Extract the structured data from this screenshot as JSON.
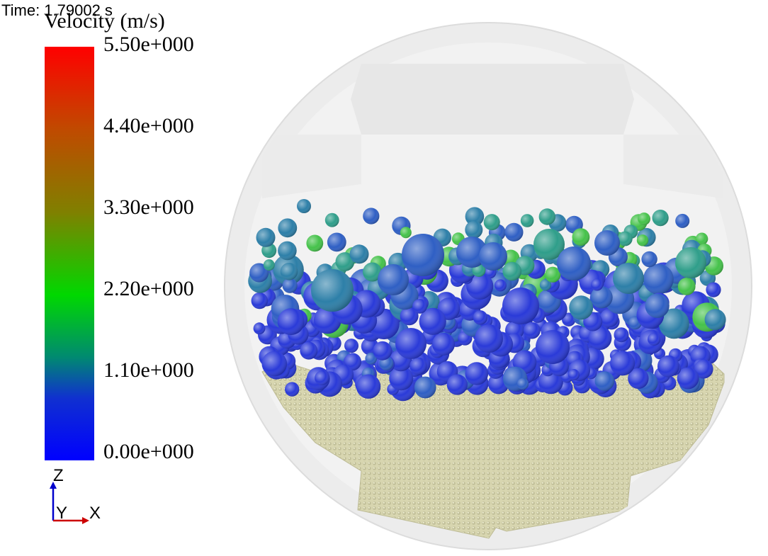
{
  "header": {
    "time_text": "Time: 1.79002 s"
  },
  "legend": {
    "title": "Velocity (m/s)",
    "ticks": [
      "5.50e+000",
      "4.40e+000",
      "3.30e+000",
      "2.20e+000",
      "1.10e+000",
      "0.00e+000"
    ],
    "colors": {
      "max": "#ff0000",
      "upper": "#c04a00",
      "mid_upper": "#808000",
      "mid": "#00d800",
      "mid_lower": "#008a70",
      "min": "#0000ff"
    }
  },
  "triad": {
    "z_label": "Z",
    "y_label": "Y",
    "x_label": "X",
    "colors": {
      "z": "#0000cc",
      "x": "#cc0000"
    }
  },
  "scene": {
    "drum_color": "#f0f0f0",
    "bed_color": "#d8d6b0",
    "particle_colors": [
      "#2a3ad8",
      "#2f5fc4",
      "#2d7fa8",
      "#2f9e8a",
      "#45c24a",
      "#5a9fd0"
    ]
  }
}
